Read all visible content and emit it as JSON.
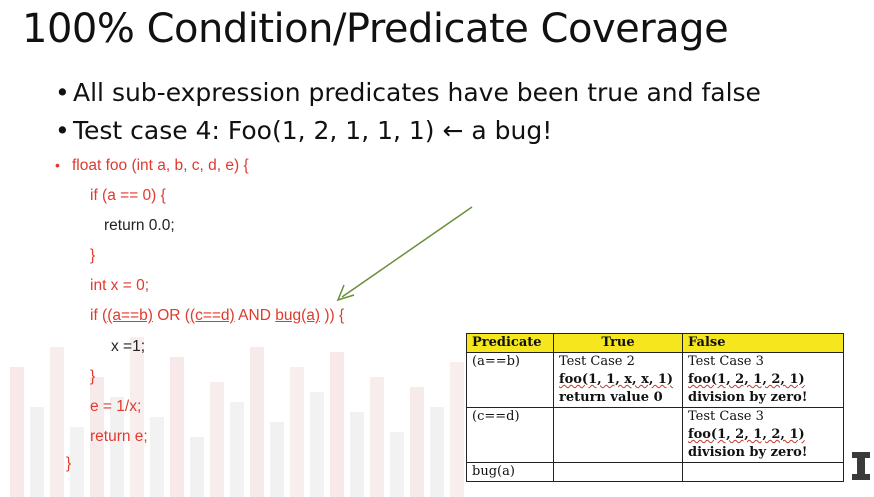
{
  "title": "100% Condition/Predicate Coverage",
  "bullets": [
    "All sub-expression predicates have been true and false",
    "Test case 4: Foo(1, 2, 1, 1, 1) ← a  bug!"
  ],
  "code": {
    "signature": "float foo (int a, b, c, d, e) {",
    "if1": "if (a == 0) {",
    "ret1": "return 0.0;",
    "close1": "}",
    "decl": "int x = 0;",
    "if2_pre": "if (",
    "if2_c1": "(a==b)",
    "if2_or": " OR (",
    "if2_c2": "(c==d)",
    "if2_and": " AND ",
    "if2_c3": "bug(a)",
    "if2_post": " )) {",
    "assign": "x =1;",
    "close2": "}",
    "calc": "e = 1/x;",
    "ret2": "return e;",
    "close3": "}"
  },
  "table": {
    "headers": [
      "Predicate",
      "True",
      "False"
    ],
    "rows": [
      {
        "predicate": "(a==b)",
        "true": [
          "Test Case 2",
          "foo(1, 1, x, x, 1)",
          "return value 0"
        ],
        "false": [
          "Test Case 3",
          "foo(1, 2, 1, 2, 1)",
          "division by zero!"
        ]
      },
      {
        "predicate": "(c==d)",
        "true": [],
        "false": [
          "Test Case 3",
          "foo(1, 2, 1, 2, 1)",
          "division by zero!"
        ]
      },
      {
        "predicate": "bug(a)",
        "true": [],
        "false": []
      }
    ]
  },
  "colors": {
    "code": "#e03a2e",
    "header_bg": "#f5e61e",
    "arrow": "#6b8e3a"
  }
}
